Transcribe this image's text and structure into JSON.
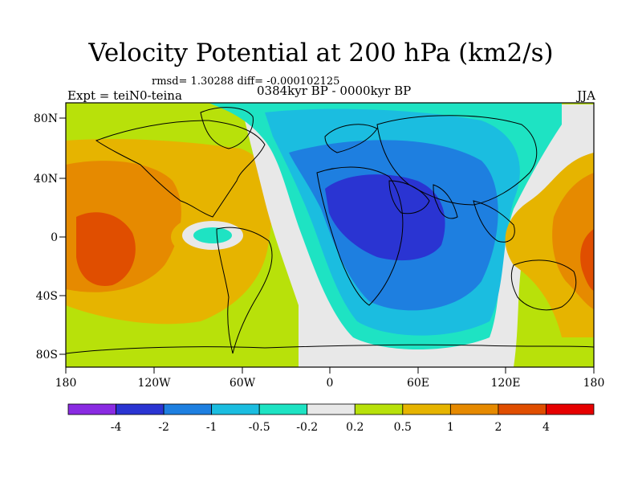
{
  "title": "Velocity Potential at 200 hPa (km2/s)",
  "stats": "rmsd= 1.30288 diff= -0.000102125",
  "expt_label": "Expt = teiN0-teina",
  "period_label": "0384kyr BP - 0000kyr BP",
  "season_label": "JJA",
  "axes": {
    "x_ticks": [
      "180",
      "120W",
      "60W",
      "0",
      "60E",
      "120E",
      "180"
    ],
    "y_ticks": [
      "80N",
      "40N",
      "0",
      "40S",
      "80S"
    ]
  },
  "colorbar": {
    "colors": [
      "#8a2be2",
      "#2a34d2",
      "#1e7fe0",
      "#1bbde0",
      "#1ee3c3",
      "#e8e8e8",
      "#b8e10a",
      "#e6b400",
      "#e68a00",
      "#e04e00",
      "#e60000"
    ],
    "labels": [
      "-4",
      "-2",
      "-1",
      "-0.5",
      "-0.2",
      "0.2",
      "0.5",
      "1",
      "2",
      "4"
    ]
  },
  "colors": {
    "ocean_default": "#b8e10a",
    "land_outline": "#000000"
  }
}
